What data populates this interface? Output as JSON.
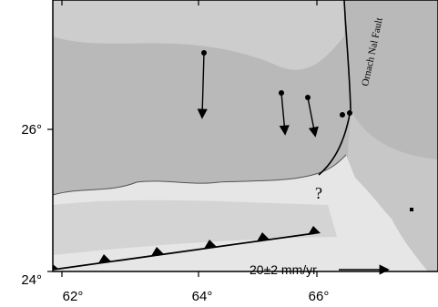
{
  "map": {
    "x_ticks": [
      "62°",
      "64°",
      "66°"
    ],
    "y_ticks": [
      "26°",
      "24°"
    ],
    "fault_label": "Ornach Nal Fault",
    "question_mark": "?",
    "velocity_scale": "20±2 mm/yr"
  }
}
